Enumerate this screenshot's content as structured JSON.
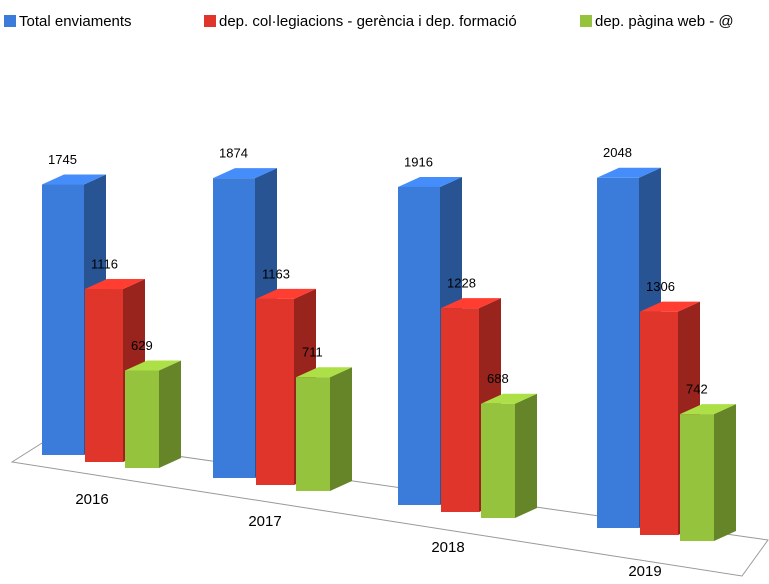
{
  "chart_data": {
    "type": "bar3d",
    "categories": [
      "2016",
      "2017",
      "2018",
      "2019"
    ],
    "series": [
      {
        "name": "Total enviaments",
        "color": "#3b7bd9",
        "values": [
          1745,
          1874,
          1916,
          2048
        ]
      },
      {
        "name": "dep. col·legiacions - gerència i dep. formació",
        "color": "#e0352b",
        "values": [
          1116,
          1163,
          1228,
          1306
        ]
      },
      {
        "name": "dep. pàgina web - @",
        "color": "#96c33d",
        "values": [
          629,
          711,
          688,
          742
        ]
      }
    ]
  }
}
